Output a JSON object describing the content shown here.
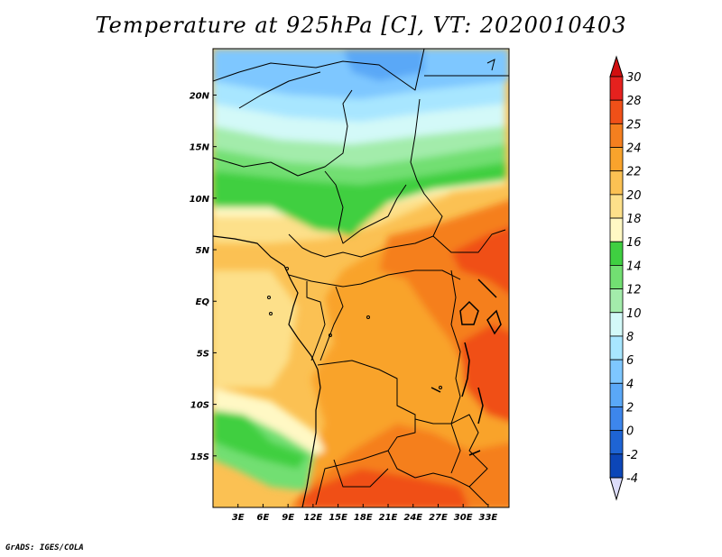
{
  "title": "Temperature at 925hPa [C], VT: 2020010403",
  "credit": "GrADS: IGES/COLA",
  "map": {
    "lon_range": [
      0,
      35.5
    ],
    "lat_range": [
      -20,
      24.5
    ],
    "lon_ticks": [
      "3E",
      "6E",
      "9E",
      "12E",
      "15E",
      "18E",
      "21E",
      "24E",
      "27E",
      "30E",
      "33E"
    ],
    "lat_ticks": [
      "20N",
      "15N",
      "10N",
      "5N",
      "EQ",
      "5S",
      "10S",
      "15S"
    ],
    "features": [
      "country-borders",
      "coastline",
      "lakes"
    ]
  },
  "colorbar": {
    "labels": [
      "30",
      "28",
      "25",
      "24",
      "22",
      "20",
      "18",
      "16",
      "14",
      "12",
      "10",
      "8",
      "6",
      "4",
      "2",
      "0",
      "-2",
      "-4"
    ],
    "colors": [
      "#e5211e",
      "#f05018",
      "#f57f1f",
      "#f9a32c",
      "#fbc153",
      "#fde08a",
      "#fff8c4",
      "#3fcf41",
      "#72df72",
      "#a3ecab",
      "#d3f9f8",
      "#a8e6ff",
      "#7ec7ff",
      "#5aa8f7",
      "#3d86ec",
      "#1e64d4",
      "#0c46b8",
      "#0a1c78"
    ],
    "top_arrow_color": "#d10f10",
    "bottom_arrow_color": "#dcdcfa"
  }
}
